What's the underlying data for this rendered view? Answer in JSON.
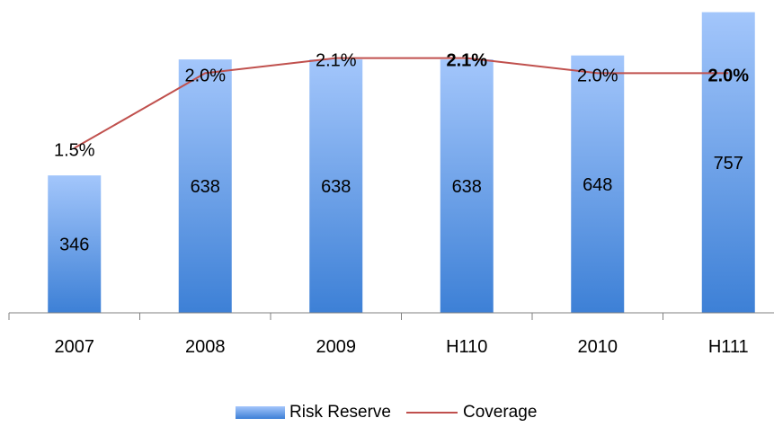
{
  "chart_data": {
    "type": "bar",
    "categories": [
      "2007",
      "2008",
      "2009",
      "H110",
      "2010",
      "H111"
    ],
    "series": [
      {
        "name": "Risk Reserve",
        "type": "bar",
        "values": [
          346,
          638,
          638,
          638,
          648,
          757
        ],
        "value_labels": [
          "346",
          "638",
          "638",
          "638",
          "648",
          "757"
        ]
      },
      {
        "name": "Coverage",
        "type": "line",
        "values": [
          1.5,
          2.0,
          2.1,
          2.1,
          2.0,
          2.0
        ],
        "value_labels": [
          "1.5%",
          "2.0%",
          "2.1%",
          "2.1%",
          "2.0%",
          "2.0%"
        ],
        "bold": [
          false,
          false,
          false,
          true,
          false,
          true
        ]
      }
    ],
    "title": "",
    "xlabel": "",
    "ylabel": "",
    "ylim": [
      0,
      765
    ],
    "y2lim": [
      0.4,
      2.2
    ],
    "legend_position": "bottom",
    "grid": false,
    "colors": {
      "bar_top": "#a3c6fb",
      "bar_bottom": "#3d80d6",
      "line": "#c0504d",
      "axis": "#808080"
    }
  }
}
